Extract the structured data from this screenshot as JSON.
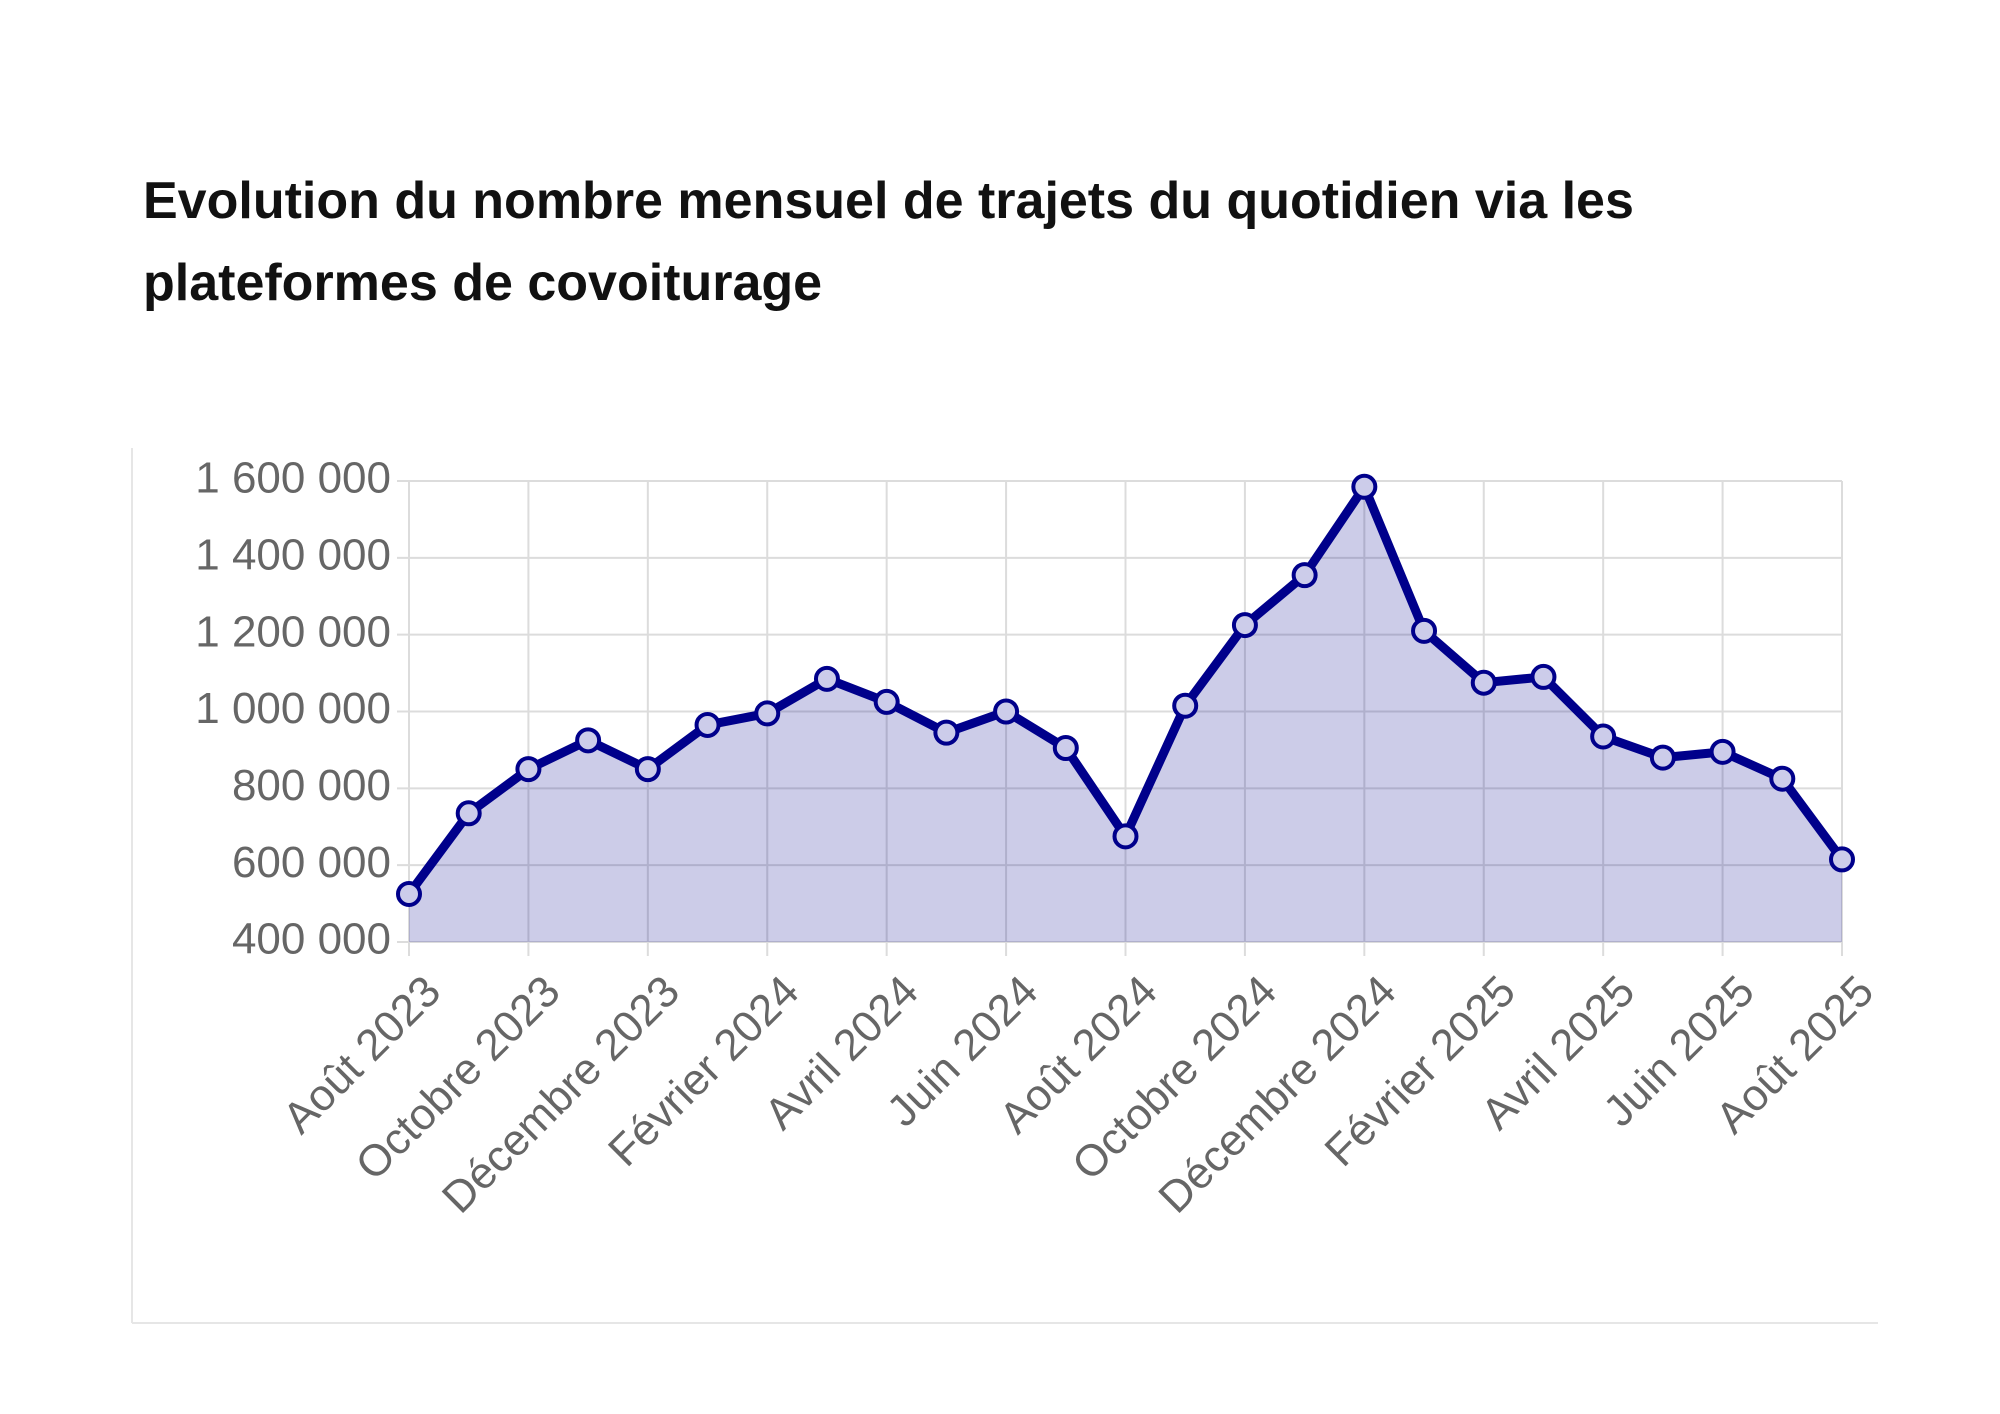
{
  "chart_data": {
    "type": "area",
    "title": "Evolution du nombre mensuel de trajets du quotidien via les plateformes de covoiturage",
    "categories": [
      "Août 2023",
      null,
      "Octobre 2023",
      null,
      "Décembre 2023",
      null,
      "Février 2024",
      null,
      "Avril 2024",
      null,
      "Juin 2024",
      null,
      "Août 2024",
      null,
      "Octobre 2024",
      null,
      "Décembre 2024",
      null,
      "Février 2025",
      null,
      "Avril 2025",
      null,
      "Juin 2025",
      null,
      "Août 2025"
    ],
    "values": [
      525000,
      735000,
      850000,
      925000,
      850000,
      965000,
      995000,
      1085000,
      1025000,
      945000,
      1000000,
      905000,
      675000,
      1015000,
      1225000,
      1355000,
      1585000,
      1210000,
      1075000,
      1090000,
      935000,
      880000,
      895000,
      825000,
      615000
    ],
    "color": "#00008b",
    "ylim": [
      400000,
      1600000
    ],
    "yticks": [
      {
        "value": 400000,
        "label": "400 000"
      },
      {
        "value": 600000,
        "label": "600 000"
      },
      {
        "value": 800000,
        "label": "800 000"
      },
      {
        "value": 1000000,
        "label": "1 000 000"
      },
      {
        "value": 1200000,
        "label": "1 200 000"
      },
      {
        "value": 1400000,
        "label": "1 400 000"
      },
      {
        "value": 1600000,
        "label": "1 600 000"
      }
    ],
    "grid": true
  }
}
